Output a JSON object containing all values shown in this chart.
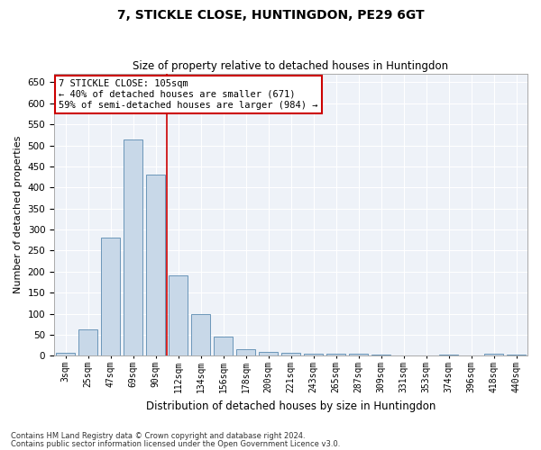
{
  "title": "7, STICKLE CLOSE, HUNTINGDON, PE29 6GT",
  "subtitle": "Size of property relative to detached houses in Huntingdon",
  "xlabel": "Distribution of detached houses by size in Huntingdon",
  "ylabel": "Number of detached properties",
  "footnote1": "Contains HM Land Registry data © Crown copyright and database right 2024.",
  "footnote2": "Contains public sector information licensed under the Open Government Licence v3.0.",
  "bar_labels": [
    "3sqm",
    "25sqm",
    "47sqm",
    "69sqm",
    "90sqm",
    "112sqm",
    "134sqm",
    "156sqm",
    "178sqm",
    "200sqm",
    "221sqm",
    "243sqm",
    "265sqm",
    "287sqm",
    "309sqm",
    "331sqm",
    "353sqm",
    "374sqm",
    "396sqm",
    "418sqm",
    "440sqm"
  ],
  "bar_values": [
    8,
    63,
    280,
    515,
    430,
    192,
    100,
    46,
    15,
    10,
    8,
    5,
    4,
    4,
    3,
    0,
    0,
    3,
    0,
    4,
    3
  ],
  "bar_color": "#c8d8e8",
  "bar_edge_color": "#5a8ab0",
  "bg_color": "#eef2f8",
  "grid_color": "#ffffff",
  "ylim": [
    0,
    670
  ],
  "yticks": [
    0,
    50,
    100,
    150,
    200,
    250,
    300,
    350,
    400,
    450,
    500,
    550,
    600,
    650
  ],
  "annotation_line1": "7 STICKLE CLOSE: 105sqm",
  "annotation_line2": "← 40% of detached houses are smaller (671)",
  "annotation_line3": "59% of semi-detached houses are larger (984) →",
  "annotation_box_color": "#ffffff",
  "annotation_border_color": "#cc0000",
  "vline_x": 4.5,
  "vline_color": "#cc0000"
}
